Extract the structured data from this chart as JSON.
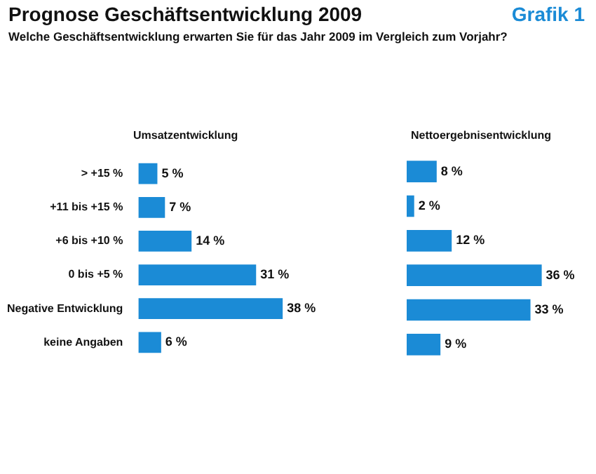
{
  "chart_data": [
    {
      "type": "bar",
      "orientation": "horizontal",
      "title": "Umsatzentwicklung",
      "annotations": [
        "Prognose Geschäftsentwicklung 2009",
        "Grafik 1",
        "Welche Geschäftsentwicklung erwarten Sie für das Jahr 2009 im Vergleich zum Vorjahr?"
      ],
      "categories": [
        "> +15 %",
        "+11 bis +15 %",
        "+6 bis +10 %",
        "0 bis +5 %",
        "Negative Entwicklung",
        "keine Angaben"
      ],
      "values": [
        5,
        7,
        14,
        31,
        38,
        6
      ],
      "value_labels": [
        "5 %",
        "7 %",
        "14 %",
        "31 %",
        "38 %",
        "6 %"
      ],
      "color": "#1b8bd6",
      "tick_labels": "y"
    },
    {
      "type": "bar",
      "orientation": "horizontal",
      "title": "Nettoergebnisentwicklung",
      "categories": [
        null,
        null,
        null,
        null,
        null,
        null
      ],
      "values": [
        8,
        2,
        12,
        36,
        33,
        9
      ],
      "value_labels": [
        "8 %",
        "2 %",
        "12 %",
        "36 %",
        "33 %",
        "9 %"
      ],
      "color": "#1b8bd6",
      "tick_labels": false
    }
  ]
}
